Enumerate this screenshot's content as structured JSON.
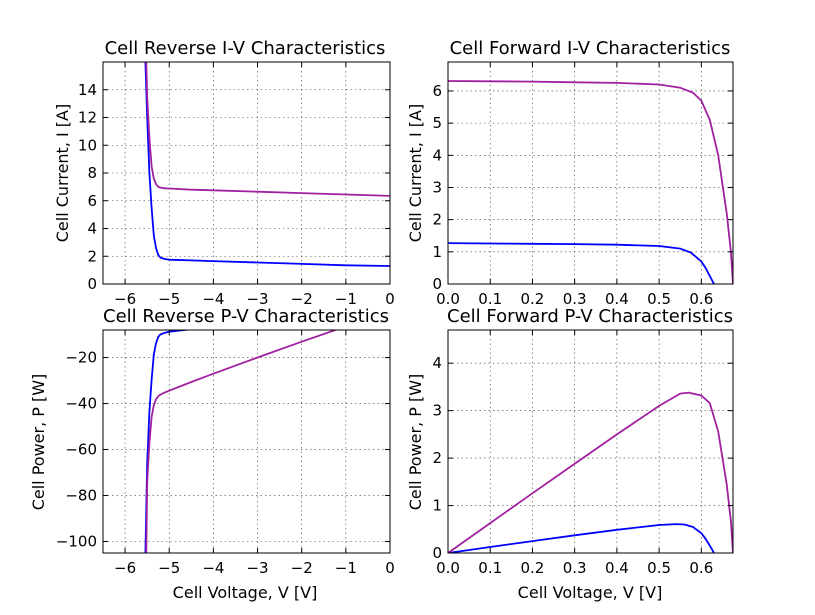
{
  "chart_data": [
    {
      "type": "line",
      "title": "Cell Reverse I-V Characteristics",
      "xlabel": "",
      "ylabel": "Cell Current, I [A]",
      "xlim": [
        -6.5,
        0
      ],
      "ylim": [
        0,
        16
      ],
      "xticks": [
        -6,
        -5,
        -4,
        -3,
        -2,
        -1,
        0
      ],
      "xtick_labels": [
        "−6",
        "−5",
        "−4",
        "−3",
        "−2",
        "−1",
        "0"
      ],
      "yticks": [
        0,
        2,
        4,
        6,
        8,
        10,
        12,
        14
      ],
      "ytick_labels": [
        "0",
        "2",
        "4",
        "6",
        "8",
        "10",
        "12",
        "14"
      ],
      "grid": true,
      "series": [
        {
          "color": "#0000ff",
          "x": [
            -5.54,
            -5.5,
            -5.45,
            -5.4,
            -5.35,
            -5.3,
            -5.25,
            -5.2,
            -5.1,
            -5.0,
            -4.5,
            -4.0,
            -3.0,
            -2.0,
            -1.0,
            0.0
          ],
          "y": [
            16.0,
            12.0,
            8.0,
            5.5,
            3.5,
            2.6,
            2.1,
            1.9,
            1.8,
            1.75,
            1.7,
            1.65,
            1.55,
            1.45,
            1.35,
            1.3
          ]
        },
        {
          "color": "#a020a0",
          "x": [
            -5.52,
            -5.5,
            -5.45,
            -5.4,
            -5.35,
            -5.3,
            -5.25,
            -5.2,
            -5.1,
            -5.0,
            -4.5,
            -4.0,
            -3.0,
            -2.0,
            -1.0,
            0.0
          ],
          "y": [
            16.0,
            13.5,
            10.5,
            8.5,
            7.6,
            7.2,
            7.0,
            6.95,
            6.9,
            6.88,
            6.8,
            6.75,
            6.65,
            6.55,
            6.45,
            6.35
          ]
        }
      ]
    },
    {
      "type": "line",
      "title": "Cell Forward I-V Characteristics",
      "xlabel": "",
      "ylabel": "Cell Current, I [A]",
      "xlim": [
        0,
        0.675
      ],
      "ylim": [
        0,
        6.9
      ],
      "xticks": [
        0,
        0.1,
        0.2,
        0.3,
        0.4,
        0.5,
        0.6
      ],
      "xtick_labels": [
        "0.0",
        "0.1",
        "0.2",
        "0.3",
        "0.4",
        "0.5",
        "0.6"
      ],
      "yticks": [
        0,
        1,
        2,
        3,
        4,
        5,
        6
      ],
      "ytick_labels": [
        "0",
        "1",
        "2",
        "3",
        "4",
        "5",
        "6"
      ],
      "grid": true,
      "series": [
        {
          "color": "#0000ff",
          "x": [
            0.0,
            0.1,
            0.2,
            0.3,
            0.4,
            0.5,
            0.55,
            0.575,
            0.6,
            0.61,
            0.62,
            0.63
          ],
          "y": [
            1.27,
            1.26,
            1.25,
            1.24,
            1.22,
            1.18,
            1.1,
            0.98,
            0.7,
            0.5,
            0.25,
            0.0
          ]
        },
        {
          "color": "#a020a0",
          "x": [
            0.0,
            0.1,
            0.2,
            0.3,
            0.4,
            0.5,
            0.55,
            0.58,
            0.6,
            0.62,
            0.64,
            0.66,
            0.67,
            0.675
          ],
          "y": [
            6.31,
            6.3,
            6.29,
            6.27,
            6.25,
            6.2,
            6.1,
            5.95,
            5.7,
            5.1,
            4.0,
            2.2,
            1.0,
            0.0
          ]
        }
      ]
    },
    {
      "type": "line",
      "title": "Cell Reverse P-V Characteristics",
      "xlabel": "Cell Voltage, V [V]",
      "ylabel": "Cell Power, P [W]",
      "xlim": [
        -6.5,
        0
      ],
      "ylim": [
        -105,
        -8
      ],
      "xticks": [
        -6,
        -5,
        -4,
        -3,
        -2,
        -1,
        0
      ],
      "xtick_labels": [
        "−6",
        "−5",
        "−4",
        "−3",
        "−2",
        "−1",
        "0"
      ],
      "yticks": [
        -100,
        -80,
        -60,
        -40,
        -20
      ],
      "ytick_labels": [
        "−100",
        "−80",
        "−60",
        "−40",
        "−20"
      ],
      "grid": true,
      "series": [
        {
          "color": "#0000ff",
          "x": [
            -5.54,
            -5.5,
            -5.45,
            -5.4,
            -5.35,
            -5.3,
            -5.25,
            -5.2,
            -5.1,
            -5.0,
            -4.5,
            -4.0,
            -3.0,
            -2.0,
            -1.0,
            0.0
          ],
          "y": [
            -105.0,
            -66.0,
            -43.6,
            -29.7,
            -18.7,
            -13.8,
            -11.0,
            -9.9,
            -9.2,
            -8.75,
            -7.65,
            -6.6,
            -4.65,
            -2.9,
            -1.35,
            0.0
          ]
        },
        {
          "color": "#a020a0",
          "x": [
            -5.52,
            -5.5,
            -5.45,
            -5.4,
            -5.35,
            -5.3,
            -5.25,
            -5.2,
            -5.1,
            -5.0,
            -4.5,
            -4.0,
            -3.0,
            -2.0,
            -1.0,
            0.0
          ],
          "y": [
            -105.0,
            -74.3,
            -57.2,
            -45.9,
            -40.7,
            -38.2,
            -36.8,
            -36.1,
            -35.2,
            -34.4,
            -30.6,
            -27.0,
            -19.95,
            -13.1,
            -6.45,
            0.0
          ]
        }
      ]
    },
    {
      "type": "line",
      "title": "Cell Forward P-V Characteristics",
      "xlabel": "Cell Voltage, V [V]",
      "ylabel": "Cell Power, P [W]",
      "xlim": [
        0,
        0.675
      ],
      "ylim": [
        0,
        4.7
      ],
      "xticks": [
        0,
        0.1,
        0.2,
        0.3,
        0.4,
        0.5,
        0.6
      ],
      "xtick_labels": [
        "0.0",
        "0.1",
        "0.2",
        "0.3",
        "0.4",
        "0.5",
        "0.6"
      ],
      "yticks": [
        0,
        1,
        2,
        3,
        4
      ],
      "ytick_labels": [
        "0",
        "1",
        "2",
        "3",
        "4"
      ],
      "grid": true,
      "series": [
        {
          "color": "#0000ff",
          "x": [
            0.0,
            0.1,
            0.2,
            0.3,
            0.4,
            0.5,
            0.54,
            0.56,
            0.58,
            0.6,
            0.61,
            0.62,
            0.63
          ],
          "y": [
            0.0,
            0.126,
            0.25,
            0.372,
            0.488,
            0.59,
            0.61,
            0.6,
            0.55,
            0.42,
            0.3,
            0.155,
            0.0
          ]
        },
        {
          "color": "#a020a0",
          "x": [
            0.0,
            0.1,
            0.2,
            0.3,
            0.4,
            0.5,
            0.55,
            0.57,
            0.58,
            0.6,
            0.62,
            0.64,
            0.66,
            0.67,
            0.675
          ],
          "y": [
            0.0,
            0.63,
            1.258,
            1.881,
            2.5,
            3.1,
            3.36,
            3.38,
            3.36,
            3.32,
            3.16,
            2.56,
            1.45,
            0.67,
            0.0
          ]
        }
      ]
    }
  ]
}
